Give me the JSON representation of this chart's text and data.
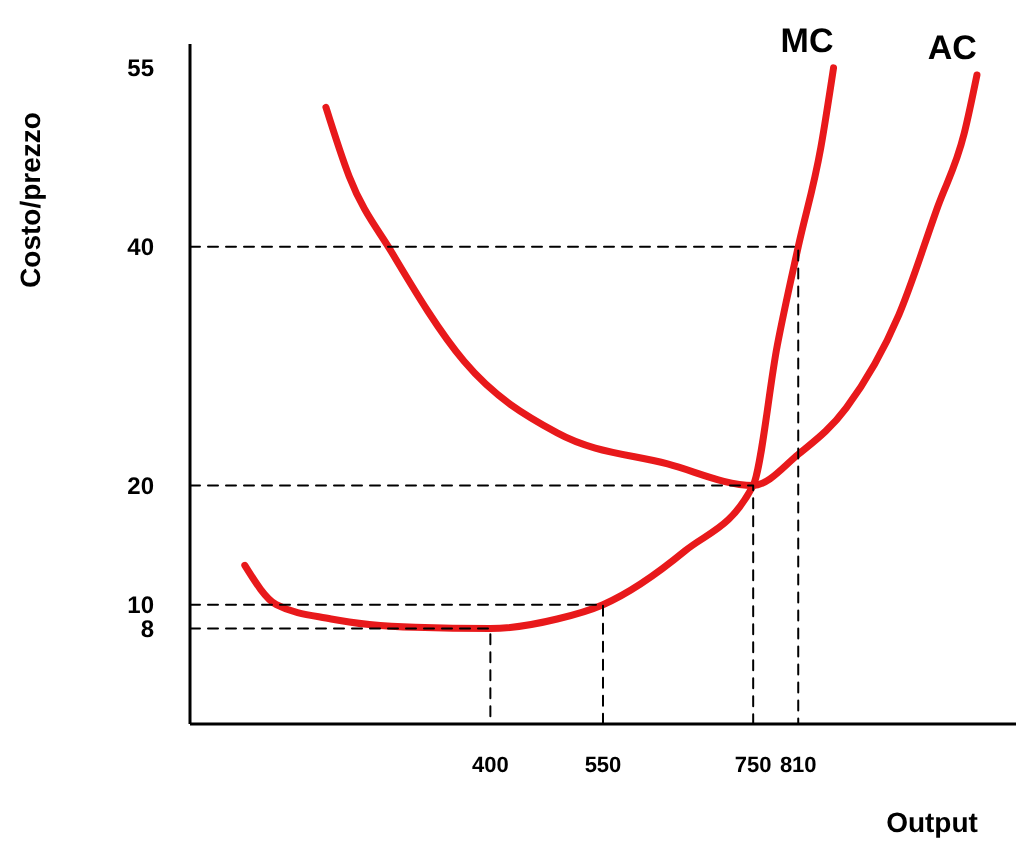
{
  "chart_data": {
    "type": "line",
    "xlabel": "Output",
    "ylabel": "Costo/prezzo",
    "xlim": [
      0,
      1100
    ],
    "ylim": [
      0,
      57
    ],
    "xticks": [
      400,
      550,
      750,
      810
    ],
    "yticks": [
      8,
      10,
      20,
      40,
      55
    ],
    "grid": false,
    "marker": "none",
    "series": [
      {
        "name": "MC",
        "color": "#e8191b",
        "x": [
          73,
          115,
          188,
          300,
          400,
          489,
          550,
          659,
          750,
          782,
          810,
          840,
          857
        ],
        "values": [
          13.3,
          10,
          8.8,
          8.1,
          8,
          8.8,
          10,
          14.5,
          20,
          31.7,
          40,
          48.3,
          55
        ]
      },
      {
        "name": "AC",
        "color": "#e8191b",
        "x": [
          181,
          212,
          269,
          365,
          489,
          636,
          750,
          810,
          874,
          944,
          996,
          1031,
          1048
        ],
        "values": [
          51.7,
          45.9,
          39.5,
          30.4,
          24.4,
          21.8,
          20,
          22.6,
          26.5,
          34.3,
          43.4,
          49.5,
          54.4
        ]
      },
      {
        "color": "#000000",
        "line_style": "dashed",
        "x": [
          0,
          400,
          400
        ],
        "values": [
          8,
          8,
          0
        ]
      },
      {
        "color": "#000000",
        "line_style": "dashed",
        "x": [
          0,
          550,
          550
        ],
        "values": [
          10,
          10,
          0
        ]
      },
      {
        "color": "#000000",
        "line_style": "dashed",
        "x": [
          0,
          750,
          750
        ],
        "values": [
          20,
          20,
          0
        ]
      },
      {
        "color": "#000000",
        "line_style": "dashed",
        "x": [
          0,
          810,
          810
        ],
        "values": [
          40,
          40,
          0
        ]
      }
    ]
  }
}
